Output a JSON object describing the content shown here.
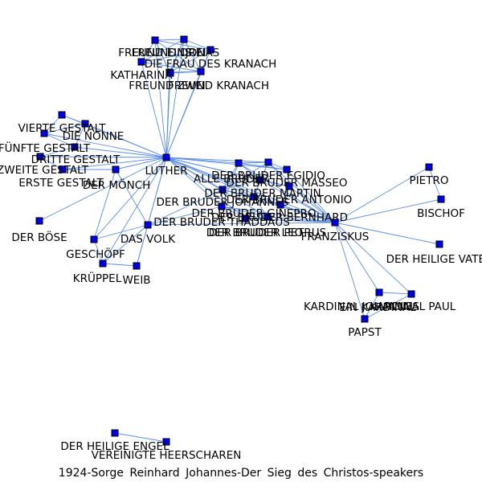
{
  "caption": "1924-Sorge Reinhard Johannes-Der Sieg des Christos-speakers",
  "colors": {
    "edge": "#5b8ee6",
    "node_fill": "#0000ee",
    "node_stroke": "#000000",
    "text": "#000000"
  },
  "nodes": [
    {
      "id": "freund-eins",
      "label": "FREUND EINS"
    },
    {
      "id": "jonas",
      "label": "JONAS"
    },
    {
      "id": "freund-drei",
      "label": "FREUND DREI"
    },
    {
      "id": "die-frau-kranach",
      "label": "DIE FRAU DES KRANACH"
    },
    {
      "id": "katharina",
      "label": "KATHARINA"
    },
    {
      "id": "freund-zwei",
      "label": "FREUND ZWEI"
    },
    {
      "id": "freund-kranach",
      "label": "FREUND KRANACH"
    },
    {
      "id": "vierte-gestalt",
      "label": "VIERTE GESTALT"
    },
    {
      "id": "die-nonne",
      "label": "DIE NONNE"
    },
    {
      "id": "fuenfte-gestalt",
      "label": "FÜNFTE GESTALT"
    },
    {
      "id": "dritte-gestalt",
      "label": "DRITTE GESTALT"
    },
    {
      "id": "zweite-gestalt",
      "label": "ZWEITE GESTALT"
    },
    {
      "id": "erste-gestalt",
      "label": "ERSTE GESTALT"
    },
    {
      "id": "der-moench",
      "label": "DER MÖNCH"
    },
    {
      "id": "luther",
      "label": "LUTHER"
    },
    {
      "id": "der-boese",
      "label": "DER BÖSE"
    },
    {
      "id": "das-volk",
      "label": "DAS VOLK"
    },
    {
      "id": "geschoepf",
      "label": "GESCHÖPF"
    },
    {
      "id": "krueppel",
      "label": "KRÜPPEL"
    },
    {
      "id": "weib",
      "label": "WEIB"
    },
    {
      "id": "bruder-egidio",
      "label": "DER BRUDER EGIDIO"
    },
    {
      "id": "alle-brueder",
      "label": "ALLE BRÜDER"
    },
    {
      "id": "bruder-masseo",
      "label": "DER BRUDER MASSEO"
    },
    {
      "id": "bruder-martin",
      "label": "DER BRUDER MARTIN"
    },
    {
      "id": "bruder-antonio",
      "label": "DER BRUDER ANTONIO"
    },
    {
      "id": "bruder-johannes",
      "label": "DER BRUDER JOHANNES"
    },
    {
      "id": "bruder-ginepro",
      "label": "DER BRUDER GINEPRO"
    },
    {
      "id": "bruder-bernhard",
      "label": "DER BRUDER BERNHARD"
    },
    {
      "id": "bruder-thaddaeus",
      "label": "DER BRUDER THADDÄUS"
    },
    {
      "id": "bruder-leo",
      "label": "DER BRUDER LEO"
    },
    {
      "id": "bruder-petrus",
      "label": "DER BRUDER PETRUS"
    },
    {
      "id": "franziskus",
      "label": "FRANZISKUS"
    },
    {
      "id": "pietro",
      "label": "PIETRO"
    },
    {
      "id": "bischof",
      "label": "BISCHOF"
    },
    {
      "id": "der-heilige-vater",
      "label": "DER HEILIGE VATER"
    },
    {
      "id": "kardinal-johannes",
      "label": "KARDINAL JOHANNES"
    },
    {
      "id": "kardinal-paul",
      "label": "KARDINAL PAUL"
    },
    {
      "id": "ein-kardinal",
      "label": "EIN KARDINAL"
    },
    {
      "id": "papst",
      "label": "PAPST"
    },
    {
      "id": "der-heilige-engel",
      "label": "DER HEILIGE ENGEL"
    },
    {
      "id": "vereinigte-heerscharen",
      "label": "VEREINIGTE HEERSCHAREN"
    }
  ],
  "edges": [
    [
      "freund-eins",
      "jonas"
    ],
    [
      "freund-eins",
      "die-frau-kranach"
    ],
    [
      "freund-eins",
      "katharina"
    ],
    [
      "freund-eins",
      "freund-zwei"
    ],
    [
      "freund-eins",
      "freund-kranach"
    ],
    [
      "freund-eins",
      "freund-drei"
    ],
    [
      "jonas",
      "die-frau-kranach"
    ],
    [
      "jonas",
      "katharina"
    ],
    [
      "jonas",
      "freund-zwei"
    ],
    [
      "jonas",
      "freund-kranach"
    ],
    [
      "jonas",
      "freund-drei"
    ],
    [
      "freund-drei",
      "katharina"
    ],
    [
      "freund-drei",
      "die-frau-kranach"
    ],
    [
      "freund-drei",
      "freund-kranach"
    ],
    [
      "katharina",
      "freund-zwei"
    ],
    [
      "katharina",
      "freund-kranach"
    ],
    [
      "die-frau-kranach",
      "freund-kranach"
    ],
    [
      "freund-zwei",
      "freund-kranach"
    ],
    [
      "luther",
      "freund-eins"
    ],
    [
      "luther",
      "jonas"
    ],
    [
      "luther",
      "freund-drei"
    ],
    [
      "luther",
      "die-frau-kranach"
    ],
    [
      "luther",
      "katharina"
    ],
    [
      "luther",
      "freund-zwei"
    ],
    [
      "luther",
      "freund-kranach"
    ],
    [
      "luther",
      "vierte-gestalt"
    ],
    [
      "luther",
      "die-nonne"
    ],
    [
      "luther",
      "fuenfte-gestalt"
    ],
    [
      "luther",
      "dritte-gestalt"
    ],
    [
      "luther",
      "zweite-gestalt"
    ],
    [
      "luther",
      "erste-gestalt"
    ],
    [
      "luther",
      "der-moench"
    ],
    [
      "vierte-gestalt",
      "die-nonne"
    ],
    [
      "vierte-gestalt",
      "fuenfte-gestalt"
    ],
    [
      "die-nonne",
      "fuenfte-gestalt"
    ],
    [
      "die-nonne",
      "dritte-gestalt"
    ],
    [
      "fuenfte-gestalt",
      "dritte-gestalt"
    ],
    [
      "dritte-gestalt",
      "zweite-gestalt"
    ],
    [
      "zweite-gestalt",
      "erste-gestalt"
    ],
    [
      "erste-gestalt",
      "der-moench"
    ],
    [
      "der-moench",
      "das-volk"
    ],
    [
      "der-moench",
      "geschoepf"
    ],
    [
      "luther",
      "der-boese"
    ],
    [
      "luther",
      "das-volk"
    ],
    [
      "luther",
      "geschoepf"
    ],
    [
      "luther",
      "krueppel"
    ],
    [
      "luther",
      "weib"
    ],
    [
      "das-volk",
      "geschoepf"
    ],
    [
      "das-volk",
      "krueppel"
    ],
    [
      "das-volk",
      "weib"
    ],
    [
      "geschoepf",
      "krueppel"
    ],
    [
      "krueppel",
      "weib"
    ],
    [
      "luther",
      "bruder-egidio"
    ],
    [
      "luther",
      "alle-brueder"
    ],
    [
      "luther",
      "bruder-masseo"
    ],
    [
      "luther",
      "bruder-martin"
    ],
    [
      "luther",
      "bruder-antonio"
    ],
    [
      "luther",
      "bruder-johannes"
    ],
    [
      "luther",
      "bruder-ginepro"
    ],
    [
      "luther",
      "bruder-bernhard"
    ],
    [
      "luther",
      "bruder-thaddaeus"
    ],
    [
      "luther",
      "bruder-leo"
    ],
    [
      "luther",
      "bruder-petrus"
    ],
    [
      "luther",
      "franziskus"
    ],
    [
      "das-volk",
      "bruder-johannes"
    ],
    [
      "das-volk",
      "bruder-thaddaeus"
    ],
    [
      "das-volk",
      "franziskus"
    ],
    [
      "bruder-egidio",
      "alle-brueder"
    ],
    [
      "bruder-egidio",
      "bruder-masseo"
    ],
    [
      "bruder-egidio",
      "bruder-martin"
    ],
    [
      "bruder-egidio",
      "bruder-johannes"
    ],
    [
      "bruder-egidio",
      "bruder-ginepro"
    ],
    [
      "bruder-egidio",
      "franziskus"
    ],
    [
      "bruder-egidio",
      "bruder-antonio"
    ],
    [
      "alle-brueder",
      "bruder-masseo"
    ],
    [
      "alle-brueder",
      "bruder-martin"
    ],
    [
      "alle-brueder",
      "bruder-johannes"
    ],
    [
      "alle-brueder",
      "bruder-thaddaeus"
    ],
    [
      "alle-brueder",
      "franziskus"
    ],
    [
      "bruder-masseo",
      "bruder-martin"
    ],
    [
      "bruder-masseo",
      "bruder-antonio"
    ],
    [
      "bruder-masseo",
      "franziskus"
    ],
    [
      "bruder-martin",
      "bruder-johannes"
    ],
    [
      "bruder-martin",
      "bruder-ginepro"
    ],
    [
      "bruder-martin",
      "bruder-antonio"
    ],
    [
      "bruder-martin",
      "franziskus"
    ],
    [
      "bruder-antonio",
      "bruder-bernhard"
    ],
    [
      "bruder-antonio",
      "franziskus"
    ],
    [
      "bruder-johannes",
      "bruder-ginepro"
    ],
    [
      "bruder-johannes",
      "bruder-thaddaeus"
    ],
    [
      "bruder-johannes",
      "franziskus"
    ],
    [
      "bruder-ginepro",
      "bruder-bernhard"
    ],
    [
      "bruder-ginepro",
      "bruder-leo"
    ],
    [
      "bruder-ginepro",
      "franziskus"
    ],
    [
      "bruder-bernhard",
      "franziskus"
    ],
    [
      "bruder-thaddaeus",
      "bruder-leo"
    ],
    [
      "bruder-thaddaeus",
      "bruder-petrus"
    ],
    [
      "bruder-thaddaeus",
      "franziskus"
    ],
    [
      "bruder-leo",
      "bruder-petrus"
    ],
    [
      "bruder-leo",
      "franziskus"
    ],
    [
      "bruder-petrus",
      "franziskus"
    ],
    [
      "franziskus",
      "pietro"
    ],
    [
      "franziskus",
      "bischof"
    ],
    [
      "pietro",
      "bischof"
    ],
    [
      "franziskus",
      "der-heilige-vater"
    ],
    [
      "franziskus",
      "kardinal-johannes"
    ],
    [
      "franziskus",
      "kardinal-paul"
    ],
    [
      "franziskus",
      "papst"
    ],
    [
      "kardinal-johannes",
      "kardinal-paul"
    ],
    [
      "kardinal-johannes",
      "papst"
    ],
    [
      "kardinal-paul",
      "papst"
    ],
    [
      "der-heilige-engel",
      "vereinigte-heerscharen"
    ]
  ]
}
